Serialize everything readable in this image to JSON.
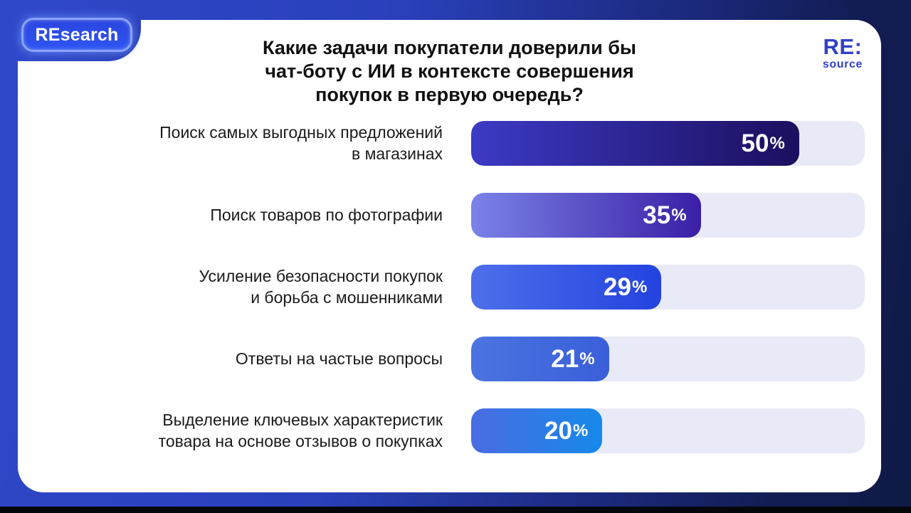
{
  "brand": {
    "pill_label": "REsearch"
  },
  "logo": {
    "primary": "RE:",
    "secondary": "source"
  },
  "chart_data": {
    "type": "bar",
    "orientation": "horizontal",
    "title": "Какие задачи покупатели доверили бы\nчат-боту с ИИ в контексте совершения\nпокупок в первую очередь?",
    "categories": [
      "Поиск самых выгодных предложений\nв магазинах",
      "Поиск товаров по фотографии",
      "Усиление безопасности покупок\nи борьба с мошенниками",
      "Ответы на частые вопросы",
      "Выделение ключевых характеристик\nтовара на основе отзывов о покупках"
    ],
    "values": [
      50,
      35,
      29,
      21,
      20
    ],
    "unit": "%",
    "scale_max": 60,
    "value_label_position": "inside-end",
    "track_color": "#e9eaf7",
    "bar_gradients": [
      [
        "#3d3ac6",
        "#1b0f5e"
      ],
      [
        "#7b82e8",
        "#3a1fa6"
      ],
      [
        "#4e6fe9",
        "#2343e0"
      ],
      [
        "#4b74e0",
        "#3a5fd9"
      ],
      [
        "#4a6ce2",
        "#1689ea"
      ]
    ]
  },
  "colors": {
    "background_from": "#2f48ca",
    "background_to": "#101a46",
    "card": "#ffffff",
    "notch": "#2d44c2",
    "logo_blue": "#3240c8",
    "title_text": "#101010",
    "label_text": "#1b1b1b",
    "bar_value_text": "#ffffff",
    "bottom_strip": "#050609"
  }
}
